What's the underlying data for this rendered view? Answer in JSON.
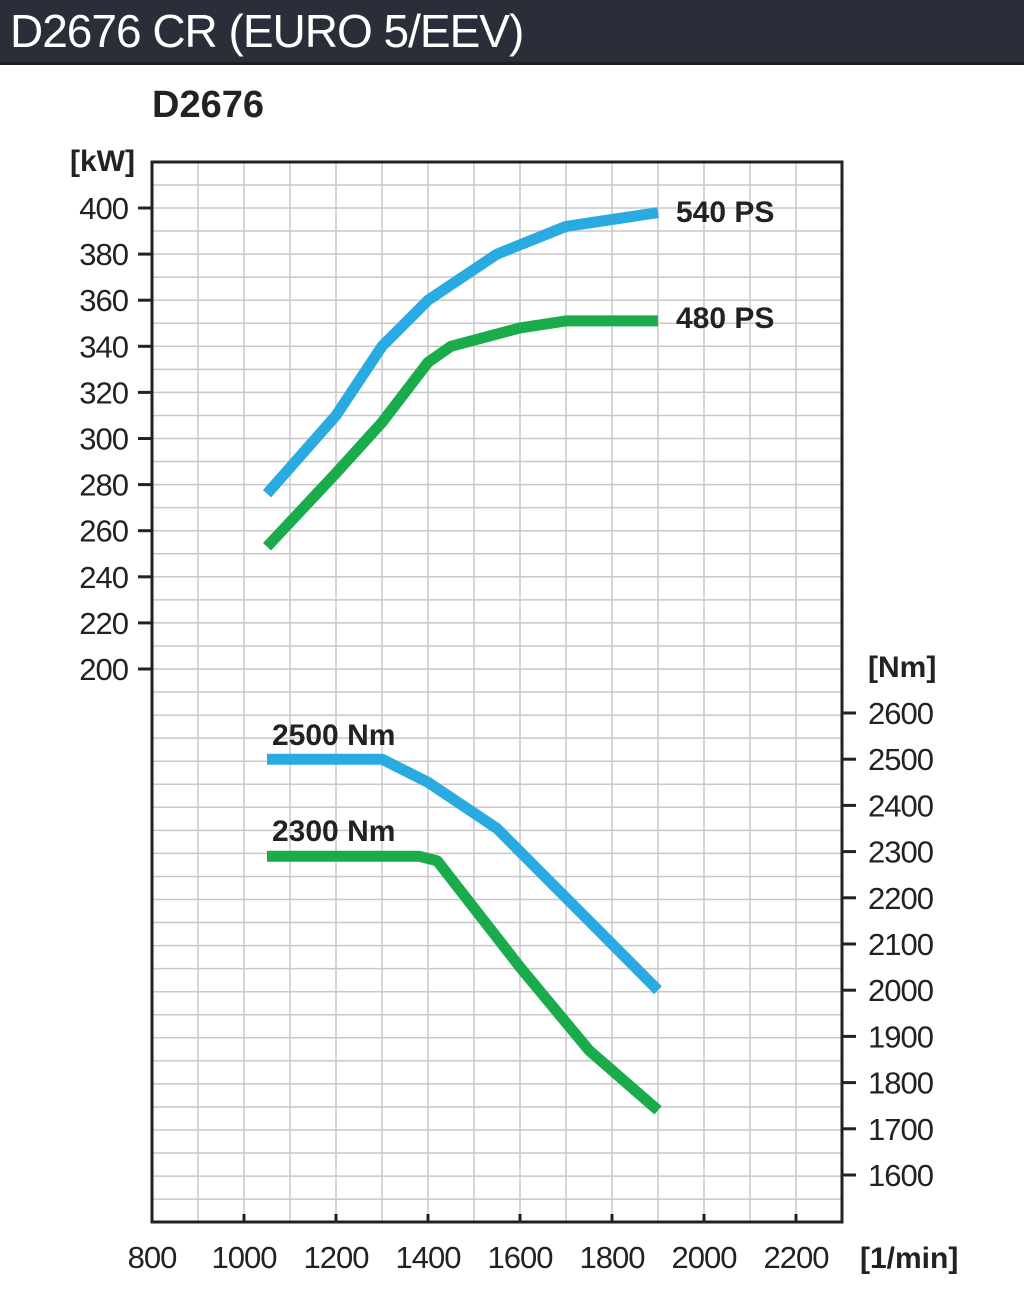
{
  "header": {
    "title": "D2676 CR (EURO 5/EEV)"
  },
  "chart_data": {
    "type": "line",
    "title": "D2676",
    "x_unit_label": "[1/min]",
    "left_unit_label": "[kW]",
    "right_unit_label": "[Nm]",
    "xlim": [
      800,
      2300
    ],
    "x_ticks": [
      800,
      1000,
      1200,
      1400,
      1600,
      1800,
      2000,
      2200
    ],
    "left_axis": {
      "ticks": [
        200,
        220,
        240,
        260,
        280,
        300,
        320,
        340,
        360,
        380,
        400
      ],
      "range": [
        200,
        400
      ]
    },
    "right_axis": {
      "ticks": [
        1600,
        1700,
        1800,
        1900,
        2000,
        2100,
        2200,
        2300,
        2400,
        2500,
        2600
      ],
      "range": [
        1600,
        2600
      ]
    },
    "grid": true,
    "colors": {
      "blue": "#29abe2",
      "green": "#1aab4b"
    },
    "series": [
      {
        "name": "540 PS",
        "axis": "left",
        "color": "#29abe2",
        "points": [
          [
            1050,
            276
          ],
          [
            1200,
            310
          ],
          [
            1300,
            340
          ],
          [
            1400,
            360
          ],
          [
            1550,
            380
          ],
          [
            1700,
            392
          ],
          [
            1800,
            395
          ],
          [
            1900,
            398
          ]
        ]
      },
      {
        "name": "480 PS",
        "axis": "left",
        "color": "#1aab4b",
        "points": [
          [
            1050,
            253
          ],
          [
            1200,
            285
          ],
          [
            1300,
            307
          ],
          [
            1400,
            333
          ],
          [
            1450,
            340
          ],
          [
            1600,
            348
          ],
          [
            1700,
            351
          ],
          [
            1800,
            351
          ],
          [
            1900,
            351
          ]
        ]
      },
      {
        "name": "2500 Nm",
        "axis": "right",
        "color": "#29abe2",
        "points": [
          [
            1050,
            2500
          ],
          [
            1300,
            2500
          ],
          [
            1400,
            2450
          ],
          [
            1550,
            2350
          ],
          [
            1700,
            2200
          ],
          [
            1900,
            2000
          ]
        ]
      },
      {
        "name": "2300 Nm",
        "axis": "right",
        "color": "#1aab4b",
        "points": [
          [
            1050,
            2290
          ],
          [
            1300,
            2290
          ],
          [
            1380,
            2290
          ],
          [
            1420,
            2280
          ],
          [
            1600,
            2050
          ],
          [
            1750,
            1870
          ],
          [
            1900,
            1740
          ]
        ]
      }
    ]
  }
}
